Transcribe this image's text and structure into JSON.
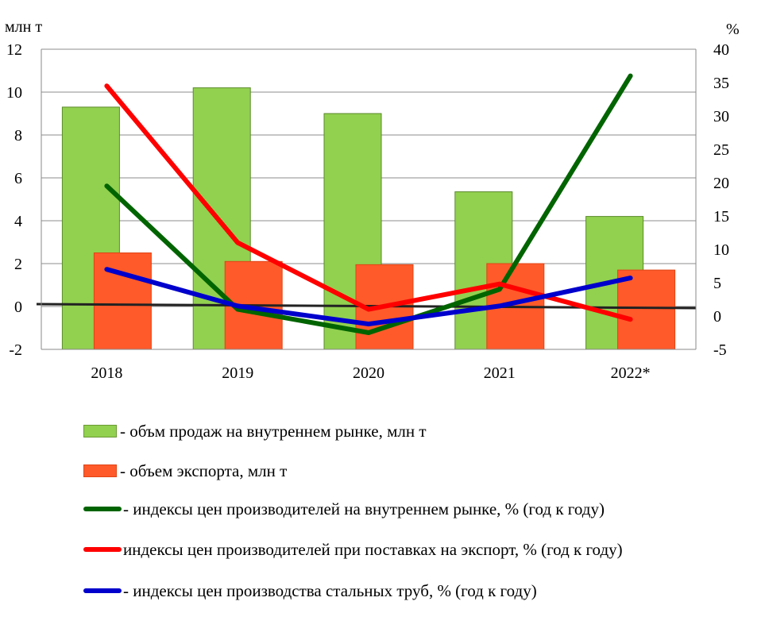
{
  "chart_data": {
    "type": "bar",
    "categories": [
      "2018",
      "2019",
      "2020",
      "2021",
      "2022*"
    ],
    "left_axis": {
      "unit_label": "млн т",
      "ylim": [
        -2,
        12
      ],
      "ticks": [
        "-2",
        "0",
        "2",
        "4",
        "6",
        "8",
        "10",
        "12"
      ]
    },
    "right_axis": {
      "unit_label": "%",
      "ylim": [
        -5,
        40
      ],
      "ticks": [
        "-5",
        "0",
        "5",
        "10",
        "15",
        "20",
        "25",
        "30",
        "35",
        "40"
      ]
    },
    "bar_series": [
      {
        "name": "- объм продаж на внутреннем рынке, млн т",
        "color": "#92d050",
        "axis": "left",
        "values": [
          9.3,
          10.2,
          9.0,
          5.35,
          4.2
        ]
      },
      {
        "name": "- объем экспорта, млн т",
        "color": "#ff5a2a",
        "axis": "left",
        "values": [
          2.5,
          2.1,
          1.95,
          2.0,
          1.7
        ]
      }
    ],
    "line_series": [
      {
        "name": "- индексы цен производителей на внутреннем рынке, % (год к году)",
        "color": "#006400",
        "axis": "right",
        "values": [
          19.5,
          1.0,
          -2.5,
          4.0,
          36.0
        ]
      },
      {
        "name": "индексы цен производителей при поставках на экспорт, % (год к году)",
        "color": "#ff0000",
        "axis": "right",
        "values": [
          34.5,
          11.0,
          1.0,
          4.8,
          -0.5
        ]
      },
      {
        "name": "- индексы цен производства стальных труб, % (год к году)",
        "color": "#0000cc",
        "axis": "right",
        "values": [
          7.0,
          1.5,
          -1.2,
          1.5,
          5.7
        ]
      }
    ],
    "grid": true,
    "legend_position": "bottom"
  }
}
